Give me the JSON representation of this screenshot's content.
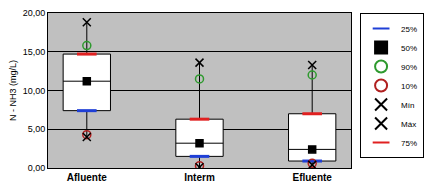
{
  "chart_data": {
    "type": "box",
    "y_label": "N - NH3 (mg/L)",
    "categories": [
      "Afluente",
      "Interm",
      "Efluente"
    ],
    "ylim": [
      0,
      20
    ],
    "yticks": [
      {
        "value": 0,
        "label": "0,00"
      },
      {
        "value": 5,
        "label": "5,00"
      },
      {
        "value": 10,
        "label": "10,00"
      },
      {
        "value": 15,
        "label": "15,00"
      },
      {
        "value": 20,
        "label": "20,00"
      }
    ],
    "grid": true,
    "legend": "right",
    "series": [
      {
        "name": "25%",
        "color": "#1f3fd6",
        "marker": "dash",
        "values": [
          7.4,
          1.5,
          0.9
        ]
      },
      {
        "name": "50%",
        "color": "#000000",
        "marker": "square",
        "values": [
          11.2,
          3.2,
          2.4
        ]
      },
      {
        "name": "90%",
        "color": "#2e9a2e",
        "marker": "circle-open",
        "values": [
          15.8,
          11.5,
          12.0
        ]
      },
      {
        "name": "10%",
        "color": "#b02020",
        "marker": "circle-open",
        "values": [
          4.3,
          0.3,
          0.6
        ]
      },
      {
        "name": "Mín",
        "color": "#000000",
        "marker": "x",
        "values": [
          4.0,
          0.1,
          0.4
        ]
      },
      {
        "name": "Máx",
        "color": "#000000",
        "marker": "x",
        "values": [
          18.8,
          13.6,
          13.3
        ]
      },
      {
        "name": "75%",
        "color": "#e02020",
        "marker": "dash",
        "values": [
          14.7,
          6.3,
          7.0
        ]
      }
    ]
  }
}
